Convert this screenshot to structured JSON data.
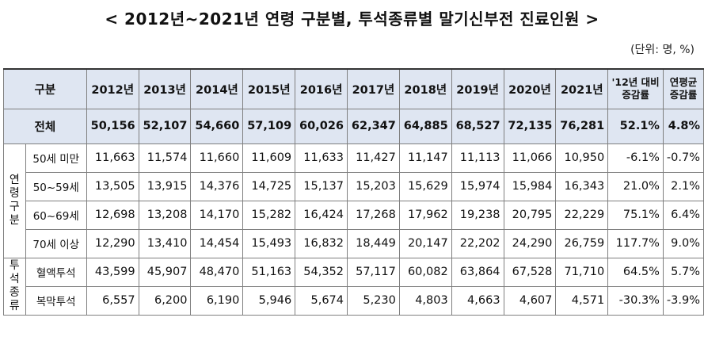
{
  "title": "< 2012년~2021년 연령 구분별, 투석종류별 말기신부전 진료인원 >",
  "unit": "(단위: 명, %)",
  "table": {
    "header": {
      "category": "구분",
      "years": [
        "2012년",
        "2013년",
        "2014년",
        "2015년",
        "2016년",
        "2017년",
        "2018년",
        "2019년",
        "2020년",
        "2021년"
      ],
      "change_vs_12_line1": "'12년 대비",
      "change_vs_12_line2": "증감률",
      "annual_avg_line1": "연평균",
      "annual_avg_line2": "증감률"
    },
    "total": {
      "label": "전체",
      "values": [
        "50,156",
        "52,107",
        "54,660",
        "57,109",
        "60,026",
        "62,347",
        "64,885",
        "68,527",
        "72,135",
        "76,281"
      ],
      "change": "52.1%",
      "annual": "4.8%"
    },
    "age_group": {
      "label": "연령구분",
      "rows": [
        {
          "label": "50세 미만",
          "values": [
            "11,663",
            "11,574",
            "11,660",
            "11,609",
            "11,633",
            "11,427",
            "11,147",
            "11,113",
            "11,066",
            "10,950"
          ],
          "change": "-6.1%",
          "annual": "-0.7%"
        },
        {
          "label": "50~59세",
          "values": [
            "13,505",
            "13,915",
            "14,376",
            "14,725",
            "15,137",
            "15,203",
            "15,629",
            "15,974",
            "15,984",
            "16,343"
          ],
          "change": "21.0%",
          "annual": "2.1%"
        },
        {
          "label": "60~69세",
          "values": [
            "12,698",
            "13,208",
            "14,170",
            "15,282",
            "16,424",
            "17,268",
            "17,962",
            "19,238",
            "20,795",
            "22,229"
          ],
          "change": "75.1%",
          "annual": "6.4%"
        },
        {
          "label": "70세 이상",
          "values": [
            "12,290",
            "13,410",
            "14,454",
            "15,493",
            "16,832",
            "18,449",
            "20,147",
            "22,202",
            "24,290",
            "26,759"
          ],
          "change": "117.7%",
          "annual": "9.0%"
        }
      ]
    },
    "dialysis_type": {
      "label": "투석종류",
      "rows": [
        {
          "label": "혈액투석",
          "values": [
            "43,599",
            "45,907",
            "48,470",
            "51,163",
            "54,352",
            "57,117",
            "60,082",
            "63,864",
            "67,528",
            "71,710"
          ],
          "change": "64.5%",
          "annual": "5.7%"
        },
        {
          "label": "복막투석",
          "values": [
            "6,557",
            "6,200",
            "6,190",
            "5,946",
            "5,674",
            "5,230",
            "4,803",
            "4,663",
            "4,607",
            "4,571"
          ],
          "change": "-30.3%",
          "annual": "-3.9%"
        }
      ]
    }
  }
}
